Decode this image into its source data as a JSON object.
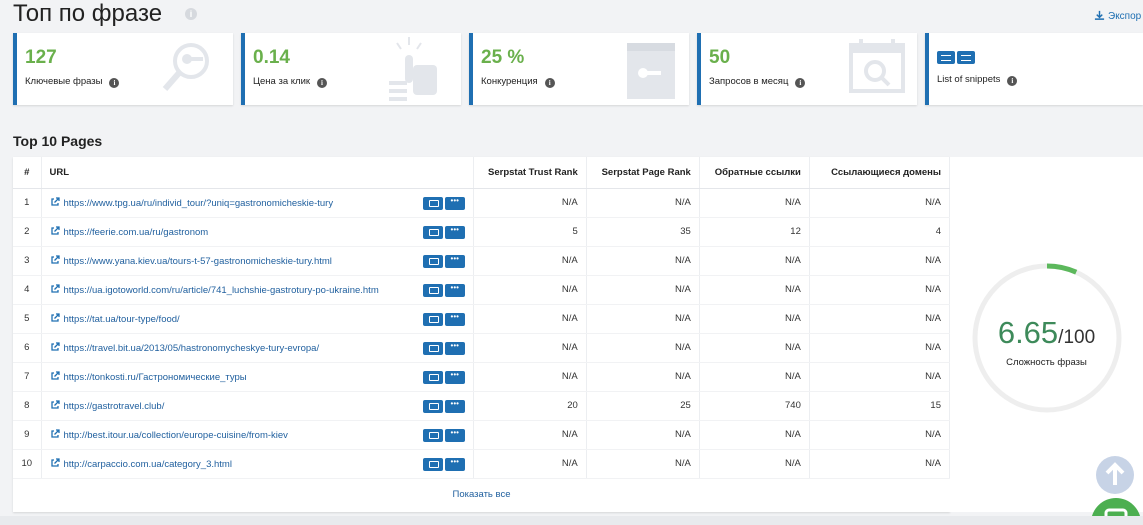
{
  "header": {
    "title": "Топ по фразе",
    "export_label": "Экспор"
  },
  "cards": [
    {
      "value": "127",
      "label": "Ключевые фразы",
      "icon": "magnifier-key-icon"
    },
    {
      "value": "0.14",
      "label": "Цена за клик",
      "icon": "hand-click-icon"
    },
    {
      "value": "25 %",
      "label": "Конкуренция",
      "icon": "door-key-icon"
    },
    {
      "value": "50",
      "label": "Запросов в месяц",
      "icon": "calendar-search-icon"
    },
    {
      "value": "",
      "label": "List of snippets",
      "icon": "snippet-icons"
    }
  ],
  "section_title": "Top 10 Pages",
  "table": {
    "columns": [
      "#",
      "URL",
      "Serpstat Trust Rank",
      "Serpstat Page Rank",
      "Обратные ссылки",
      "Ссылающиеся домены"
    ],
    "rows": [
      {
        "n": "1",
        "url": "https://www.tpg.ua/ru/individ_tour/?uniq=gastronomicheskie-tury",
        "trust": "N/A",
        "page": "N/A",
        "back": "N/A",
        "domains": "N/A"
      },
      {
        "n": "2",
        "url": "https://feerie.com.ua/ru/gastronom",
        "trust": "5",
        "page": "35",
        "back": "12",
        "domains": "4"
      },
      {
        "n": "3",
        "url": "https://www.yana.kiev.ua/tours-t-57-gastronomicheskie-tury.html",
        "trust": "N/A",
        "page": "N/A",
        "back": "N/A",
        "domains": "N/A"
      },
      {
        "n": "4",
        "url": "https://ua.igotoworld.com/ru/article/741_luchshie-gastrotury-po-ukraine.htm",
        "trust": "N/A",
        "page": "N/A",
        "back": "N/A",
        "domains": "N/A"
      },
      {
        "n": "5",
        "url": "https://tat.ua/tour-type/food/",
        "trust": "N/A",
        "page": "N/A",
        "back": "N/A",
        "domains": "N/A"
      },
      {
        "n": "6",
        "url": "https://travel.bit.ua/2013/05/hastronomycheskye-tury-evropa/",
        "trust": "N/A",
        "page": "N/A",
        "back": "N/A",
        "domains": "N/A"
      },
      {
        "n": "7",
        "url": "https://tonkosti.ru/Гастрономические_туры",
        "trust": "N/A",
        "page": "N/A",
        "back": "N/A",
        "domains": "N/A"
      },
      {
        "n": "8",
        "url": "https://gastrotravel.club/",
        "trust": "20",
        "page": "25",
        "back": "740",
        "domains": "15"
      },
      {
        "n": "9",
        "url": "http://best.itour.ua/collection/europe-cuisine/from-kiev",
        "trust": "N/A",
        "page": "N/A",
        "back": "N/A",
        "domains": "N/A"
      },
      {
        "n": "10",
        "url": "http://carpaccio.com.ua/category_3.html",
        "trust": "N/A",
        "page": "N/A",
        "back": "N/A",
        "domains": "N/A"
      }
    ],
    "show_all": "Показать все"
  },
  "difficulty": {
    "value": "6.65",
    "max": "/100",
    "fraction": 0.0665,
    "label": "Сложность фразы"
  },
  "colors": {
    "accent": "#1f6fb2",
    "value_green": "#6ab04c",
    "score_green": "#3d8a5a"
  }
}
